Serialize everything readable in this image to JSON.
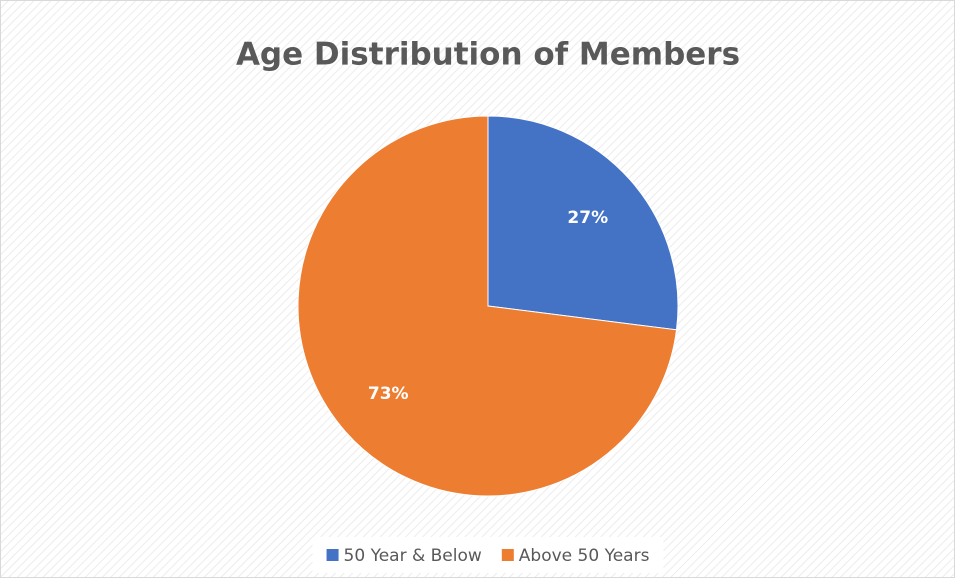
{
  "chart_data": {
    "type": "pie",
    "title": "Age Distribution of Members",
    "categories": [
      "50 Year & Below",
      "Above 50 Years"
    ],
    "values": [
      27,
      73
    ],
    "value_labels": [
      "27%",
      "73%"
    ],
    "colors": [
      "#4472c4",
      "#ed7d31"
    ],
    "legend": "bottom"
  }
}
